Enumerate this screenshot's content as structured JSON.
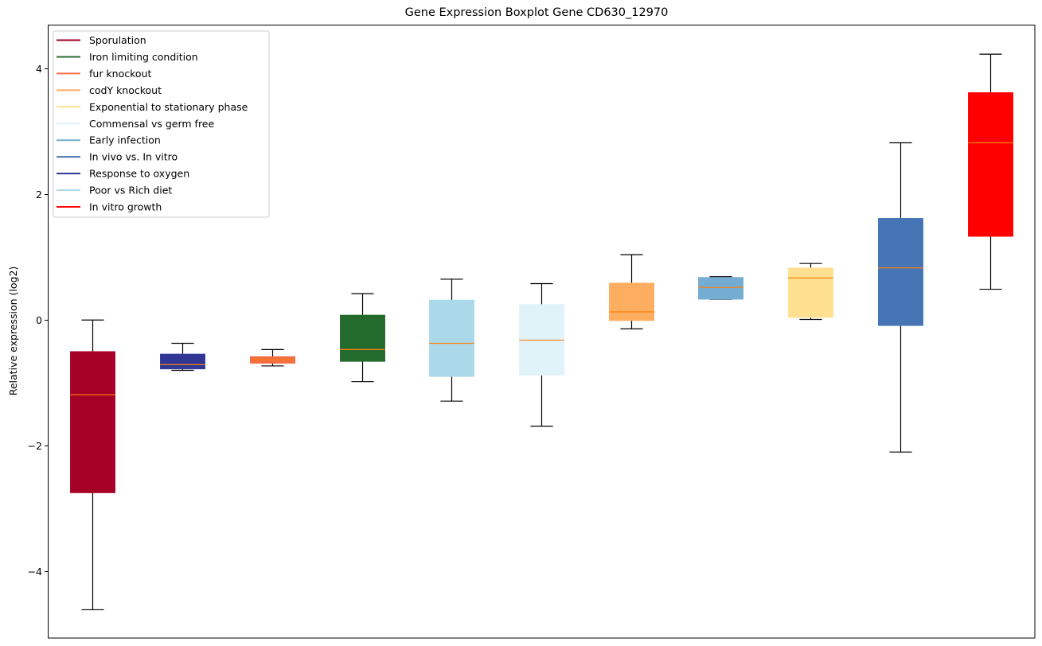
{
  "chart_data": {
    "type": "boxplot",
    "title": "Gene Expression Boxplot Gene CD630_12970",
    "xlabel": "",
    "ylabel": "Relative expression (log2)",
    "ylim": [
      -5.06,
      4.7
    ],
    "xlim": [
      0.5,
      11.5
    ],
    "yticks": [
      -4,
      -2,
      0,
      2,
      4
    ],
    "ytick_labels": [
      "−4",
      "−2",
      "0",
      "2",
      "4"
    ],
    "xticks_visible": false,
    "grid": false,
    "legend_position": "top-left",
    "median_color": "#ff7f0e",
    "legend": [
      {
        "label": "Sporulation",
        "color": "#a50026"
      },
      {
        "label": "Iron limiting condition",
        "color": "#236b2c"
      },
      {
        "label": "fur knockout",
        "color": "#f46d43"
      },
      {
        "label": "codY knockout",
        "color": "#fdae61"
      },
      {
        "label": "Exponential to stationary phase",
        "color": "#fee090"
      },
      {
        "label": "Commensal vs germ free",
        "color": "#e0f3f8"
      },
      {
        "label": "Early infection",
        "color": "#74add1"
      },
      {
        "label": "In vivo vs. In vitro",
        "color": "#4575b4"
      },
      {
        "label": "Response to oxygen",
        "color": "#313695"
      },
      {
        "label": "Poor vs Rich diet",
        "color": "#abd9e9"
      },
      {
        "label": "In vitro growth",
        "color": "#ff0000"
      }
    ],
    "series": [
      {
        "name": "Sporulation",
        "position": 1,
        "color": "#a50026",
        "whisker_low": -4.61,
        "q1": -2.75,
        "median": -1.19,
        "q3": -0.5,
        "whisker_high": 0.0
      },
      {
        "name": "Response to oxygen",
        "position": 2,
        "color": "#313695",
        "whisker_low": -0.8,
        "q1": -0.78,
        "median": -0.71,
        "q3": -0.54,
        "whisker_high": -0.37
      },
      {
        "name": "fur knockout",
        "position": 3,
        "color": "#f46d43",
        "whisker_low": -0.73,
        "q1": -0.69,
        "median": -0.63,
        "q3": -0.58,
        "whisker_high": -0.47
      },
      {
        "name": "Iron limiting condition",
        "position": 4,
        "color": "#236b2c",
        "whisker_low": -0.98,
        "q1": -0.66,
        "median": -0.47,
        "q3": 0.08,
        "whisker_high": 0.42
      },
      {
        "name": "Poor vs Rich diet",
        "position": 5,
        "color": "#abd9e9",
        "whisker_low": -1.29,
        "q1": -0.9,
        "median": -0.37,
        "q3": 0.32,
        "whisker_high": 0.65
      },
      {
        "name": "Commensal vs germ free",
        "position": 6,
        "color": "#e0f3f8",
        "whisker_low": -1.69,
        "q1": -0.88,
        "median": -0.32,
        "q3": 0.25,
        "whisker_high": 0.58
      },
      {
        "name": "codY knockout",
        "position": 7,
        "color": "#fdae61",
        "whisker_low": -0.14,
        "q1": -0.01,
        "median": 0.13,
        "q3": 0.59,
        "whisker_high": 1.04
      },
      {
        "name": "Early infection",
        "position": 8,
        "color": "#74add1",
        "whisker_low": 0.33,
        "q1": 0.33,
        "median": 0.52,
        "q3": 0.68,
        "whisker_high": 0.69
      },
      {
        "name": "Exponential to stationary phase",
        "position": 9,
        "color": "#fee090",
        "whisker_low": 0.01,
        "q1": 0.04,
        "median": 0.67,
        "q3": 0.83,
        "whisker_high": 0.9
      },
      {
        "name": "In vivo vs. In vitro",
        "position": 10,
        "color": "#4575b4",
        "whisker_low": -2.1,
        "q1": -0.09,
        "median": 0.83,
        "q3": 1.62,
        "whisker_high": 2.82
      },
      {
        "name": "In vitro growth",
        "position": 11,
        "color": "#ff0000",
        "whisker_low": 0.49,
        "q1": 1.33,
        "median": 2.82,
        "q3": 3.62,
        "whisker_high": 4.23
      }
    ]
  }
}
